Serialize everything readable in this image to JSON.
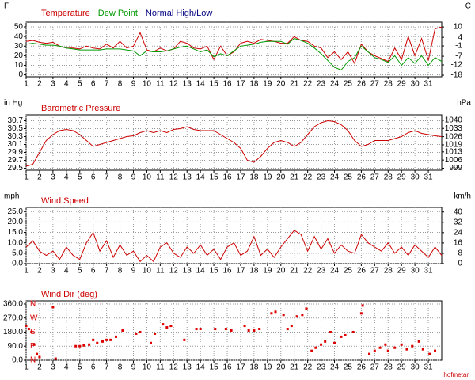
{
  "chart_data": [
    {
      "type": "line",
      "ylabel": "F",
      "y2label": "C",
      "x": [
        1,
        1.5,
        2,
        2.5,
        3,
        3.5,
        4,
        4.5,
        5,
        5.5,
        6,
        6.5,
        7,
        7.5,
        8,
        8.5,
        9,
        9.5,
        10,
        10.5,
        11,
        11.5,
        12,
        12.5,
        13,
        13.5,
        14,
        14.5,
        15,
        15.5,
        16,
        16.5,
        17,
        17.5,
        18,
        18.5,
        19,
        19.5,
        20,
        20.5,
        21,
        21.5,
        22,
        22.5,
        23,
        23.5,
        24,
        24.5,
        25,
        25.5,
        26,
        26.5,
        27,
        27.5,
        28,
        28.5,
        29,
        29.5,
        30,
        30.5,
        31,
        31.5,
        32
      ],
      "series": [
        {
          "name": "Temperature",
          "color": "#cc0000",
          "values": [
            35,
            36,
            34,
            33,
            34,
            30,
            28,
            28,
            27,
            30,
            28,
            27,
            32,
            28,
            35,
            28,
            30,
            44,
            26,
            24,
            28,
            25,
            27,
            35,
            33,
            28,
            27,
            30,
            16,
            30,
            20,
            24,
            33,
            35,
            33,
            37,
            36,
            35,
            33,
            33,
            40,
            36,
            35,
            30,
            28,
            18,
            24,
            16,
            24,
            12,
            32,
            24,
            20,
            17,
            14,
            28,
            16,
            40,
            20,
            38,
            15,
            48,
            50
          ]
        },
        {
          "name": "Dew Point",
          "color": "#009900",
          "values": [
            32,
            33,
            32,
            31,
            31,
            30,
            28,
            27,
            26,
            26,
            26,
            26,
            27,
            27,
            27,
            26,
            25,
            20,
            25,
            24,
            24,
            25,
            27,
            29,
            30,
            27,
            24,
            26,
            19,
            22,
            20,
            25,
            30,
            31,
            32,
            34,
            35,
            35,
            35,
            32,
            38,
            36,
            33,
            28,
            22,
            15,
            8,
            5,
            14,
            18,
            30,
            24,
            18,
            16,
            13,
            20,
            10,
            18,
            12,
            20,
            10,
            18,
            14
          ]
        },
        {
          "name": "Normal High/Low",
          "color": "#000080",
          "values": [
            null,
            null,
            null,
            null,
            null,
            null,
            null,
            null,
            null,
            null,
            null,
            null,
            null,
            null,
            null,
            null,
            null,
            null,
            null,
            null,
            null,
            null,
            null,
            null,
            null,
            null,
            null,
            null,
            null,
            null,
            null,
            null,
            null,
            null,
            null,
            null,
            null,
            null,
            null,
            null,
            null,
            null,
            null,
            null,
            null,
            null,
            null,
            null,
            null,
            null,
            null,
            null,
            null,
            null,
            null,
            null,
            null,
            null,
            null,
            null,
            null,
            null,
            null
          ]
        }
      ],
      "xlim": [
        1,
        32
      ],
      "xticks": [
        1,
        2,
        3,
        4,
        5,
        6,
        7,
        8,
        9,
        10,
        11,
        12,
        13,
        14,
        15,
        16,
        17,
        18,
        19,
        20,
        21,
        22,
        23,
        24,
        25,
        26,
        27,
        28,
        29,
        30,
        31
      ],
      "ylim": [
        -2,
        55
      ],
      "yticks": [
        0,
        10,
        20,
        30,
        40,
        50
      ],
      "y2lim": [
        -18.9,
        12.8
      ],
      "y2ticks": [
        -18,
        -12,
        -7,
        -1,
        4,
        10
      ],
      "grid": true
    },
    {
      "type": "line",
      "title": "Barometric Pressure",
      "ylabel": "in Hg",
      "y2label": "hPa",
      "x": [
        1,
        1.5,
        2,
        2.5,
        3,
        3.5,
        4,
        4.5,
        5,
        5.5,
        6,
        6.5,
        7,
        7.5,
        8,
        8.5,
        9,
        9.5,
        10,
        10.5,
        11,
        11.5,
        12,
        12.5,
        13,
        13.5,
        14,
        14.5,
        15,
        15.5,
        16,
        16.5,
        17,
        17.5,
        18,
        18.5,
        19,
        19.5,
        20,
        20.5,
        21,
        21.5,
        22,
        22.5,
        23,
        23.5,
        24,
        24.5,
        25,
        25.5,
        26,
        26.5,
        27,
        27.5,
        28,
        28.5,
        29,
        29.5,
        30,
        30.5,
        31,
        31.5,
        32
      ],
      "series": [
        {
          "name": "Barometric Pressure",
          "color": "#cc0000",
          "values": [
            29.55,
            29.6,
            29.9,
            30.2,
            30.35,
            30.45,
            30.48,
            30.45,
            30.35,
            30.2,
            30.05,
            30.1,
            30.15,
            30.2,
            30.25,
            30.3,
            30.32,
            30.4,
            30.45,
            30.4,
            30.45,
            30.4,
            30.48,
            30.5,
            30.55,
            30.48,
            30.45,
            30.45,
            30.45,
            30.35,
            30.25,
            30.15,
            30.0,
            29.7,
            29.65,
            29.8,
            30.0,
            30.15,
            30.2,
            30.15,
            30.05,
            30.15,
            30.35,
            30.55,
            30.65,
            30.7,
            30.68,
            30.6,
            30.45,
            30.2,
            30.05,
            30.1,
            30.2,
            30.2,
            30.2,
            30.25,
            30.3,
            30.4,
            30.45,
            30.38,
            30.35,
            30.32,
            30.3
          ]
        }
      ],
      "xlim": [
        1,
        32
      ],
      "xticks": [
        1,
        2,
        3,
        4,
        5,
        6,
        7,
        8,
        9,
        10,
        11,
        12,
        13,
        14,
        15,
        16,
        17,
        18,
        19,
        20,
        21,
        22,
        23,
        24,
        25,
        26,
        27,
        28,
        29,
        30,
        31
      ],
      "ylim": [
        29.45,
        30.85
      ],
      "yticks": [
        29.5,
        29.7,
        29.9,
        30.1,
        30.3,
        30.5,
        30.7
      ],
      "y2lim": [
        997.3,
        1044.7
      ],
      "y2ticks": [
        999,
        1006,
        1013,
        1019,
        1026,
        1033,
        1040
      ],
      "grid": true
    },
    {
      "type": "line",
      "title": "Wind Speed",
      "ylabel": "mph",
      "y2label": "km/h",
      "x": [
        1,
        1.5,
        2,
        2.5,
        3,
        3.5,
        4,
        4.5,
        5,
        5.5,
        6,
        6.5,
        7,
        7.5,
        8,
        8.5,
        9,
        9.5,
        10,
        10.5,
        11,
        11.5,
        12,
        12.5,
        13,
        13.5,
        14,
        14.5,
        15,
        15.5,
        16,
        16.5,
        17,
        17.5,
        18,
        18.5,
        19,
        19.5,
        20,
        20.5,
        21,
        21.5,
        22,
        22.5,
        23,
        23.5,
        24,
        24.5,
        25,
        25.5,
        26,
        26.5,
        27,
        27.5,
        28,
        28.5,
        29,
        29.5,
        30,
        30.5,
        31,
        31.5,
        32
      ],
      "series": [
        {
          "name": "Wind Speed",
          "color": "#cc0000",
          "values": [
            8,
            11,
            6,
            4,
            6,
            2,
            8,
            4,
            2,
            10,
            15,
            6,
            11,
            3,
            9,
            4,
            6,
            1,
            4,
            1,
            8,
            10,
            5,
            3,
            8,
            5,
            9,
            4,
            7,
            2,
            8,
            10,
            4,
            6,
            13,
            4,
            7,
            3,
            8,
            12,
            16,
            14,
            6,
            13,
            7,
            12,
            5,
            9,
            6,
            5,
            14,
            10,
            8,
            6,
            10,
            5,
            8,
            4,
            9,
            6,
            3,
            8,
            4
          ]
        }
      ],
      "xlim": [
        1,
        32
      ],
      "xticks": [
        1,
        2,
        3,
        4,
        5,
        6,
        7,
        8,
        9,
        10,
        11,
        12,
        13,
        14,
        15,
        16,
        17,
        18,
        19,
        20,
        21,
        22,
        23,
        24,
        25,
        26,
        27,
        28,
        29,
        30,
        31
      ],
      "ylim": [
        0,
        27
      ],
      "yticks": [
        {
          "value": 0,
          "label": "0.0"
        },
        {
          "value": 5,
          "label": "5.0"
        },
        {
          "value": 10,
          "label": "10.0"
        },
        {
          "value": 15,
          "label": "15.0"
        },
        {
          "value": 20,
          "label": "20.0"
        },
        {
          "value": 25,
          "label": "25.0"
        }
      ],
      "y2lim": [
        0,
        43.5
      ],
      "y2ticks": [
        0,
        8,
        16,
        24,
        32,
        40
      ],
      "grid": true
    },
    {
      "type": "scatter",
      "title": "Wind Dir (deg)",
      "x": [
        1.0,
        1.2,
        1.4,
        1.6,
        1.8,
        2,
        3,
        3.2,
        4.7,
        5,
        5.3,
        5.7,
        6,
        6.3,
        6.7,
        7,
        7.3,
        7.7,
        8.2,
        9.2,
        9.5,
        10.3,
        10.6,
        11.2,
        11.5,
        11.8,
        12.8,
        13.7,
        14,
        15.1,
        15.9,
        16.3,
        17.3,
        17.6,
        18,
        18.4,
        19.3,
        19.6,
        20.2,
        20.5,
        20.8,
        21.2,
        21.6,
        21.9,
        22.3,
        22.6,
        23,
        23.3,
        23.7,
        24,
        24.5,
        24.8,
        25.4,
        26,
        26.1,
        26.6,
        27,
        27.4,
        27.8,
        28,
        28.5,
        29,
        29.4,
        29.8,
        30.3,
        30.6,
        31.1,
        31.5
      ],
      "values": [
        220,
        200,
        180,
        100,
        40,
        20,
        340,
        10,
        90,
        90,
        95,
        100,
        130,
        110,
        120,
        130,
        130,
        150,
        190,
        170,
        180,
        110,
        170,
        230,
        210,
        220,
        130,
        200,
        200,
        200,
        200,
        190,
        220,
        190,
        190,
        200,
        300,
        310,
        290,
        200,
        220,
        280,
        290,
        330,
        60,
        80,
        100,
        120,
        180,
        110,
        150,
        160,
        180,
        300,
        350,
        40,
        60,
        80,
        100,
        60,
        80,
        100,
        70,
        90,
        120,
        70,
        40,
        60
      ],
      "color": "#dd0000",
      "direction_labels": [
        {
          "value": 360,
          "label": "N"
        },
        {
          "value": 270,
          "label": "W"
        },
        {
          "value": 180,
          "label": "S"
        },
        {
          "value": 90,
          "label": "E"
        },
        {
          "value": 0,
          "label": "N"
        }
      ],
      "xlim": [
        1,
        32
      ],
      "xticks": [
        1,
        2,
        3,
        4,
        5,
        6,
        7,
        8,
        9,
        10,
        11,
        12,
        13,
        14,
        15,
        16,
        17,
        18,
        19,
        20,
        21,
        22,
        23,
        24,
        25,
        26,
        27,
        28,
        29,
        30,
        31
      ],
      "ylim": [
        0,
        380
      ],
      "yticks": [
        {
          "value": 0,
          "label": "0.0"
        },
        {
          "value": 90,
          "label": "90.0"
        },
        {
          "value": 180,
          "label": "180.0"
        },
        {
          "value": 270,
          "label": "270.0"
        },
        {
          "value": 360,
          "label": "360.0"
        }
      ],
      "grid": true
    }
  ],
  "credit": "hofmetar"
}
